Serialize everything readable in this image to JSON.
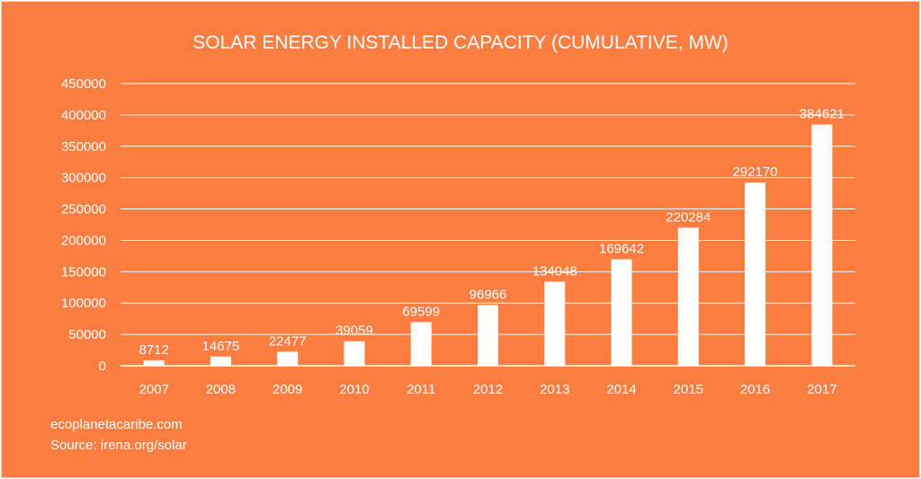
{
  "chart_data": {
    "type": "bar",
    "title": "SOLAR ENERGY INSTALLED CAPACITY (CUMULATIVE, MW)",
    "categories": [
      "2007",
      "2008",
      "2009",
      "2010",
      "2011",
      "2012",
      "2013",
      "2014",
      "2015",
      "2016",
      "2017"
    ],
    "values": [
      8712,
      14675,
      22477,
      39059,
      69599,
      96966,
      134048,
      169642,
      220284,
      292170,
      384621
    ],
    "ylim": [
      0,
      450000
    ],
    "yticks": [
      0,
      50000,
      100000,
      150000,
      200000,
      250000,
      300000,
      350000,
      400000,
      450000
    ],
    "grid": true,
    "data_labels": true,
    "colors": {
      "background": "#FE7E41",
      "bar": "#FFFFFF",
      "text": "#FFFFFF"
    }
  },
  "footer": {
    "site": "ecoplanetacaribe.com",
    "source": "Source: irena.org/solar"
  }
}
